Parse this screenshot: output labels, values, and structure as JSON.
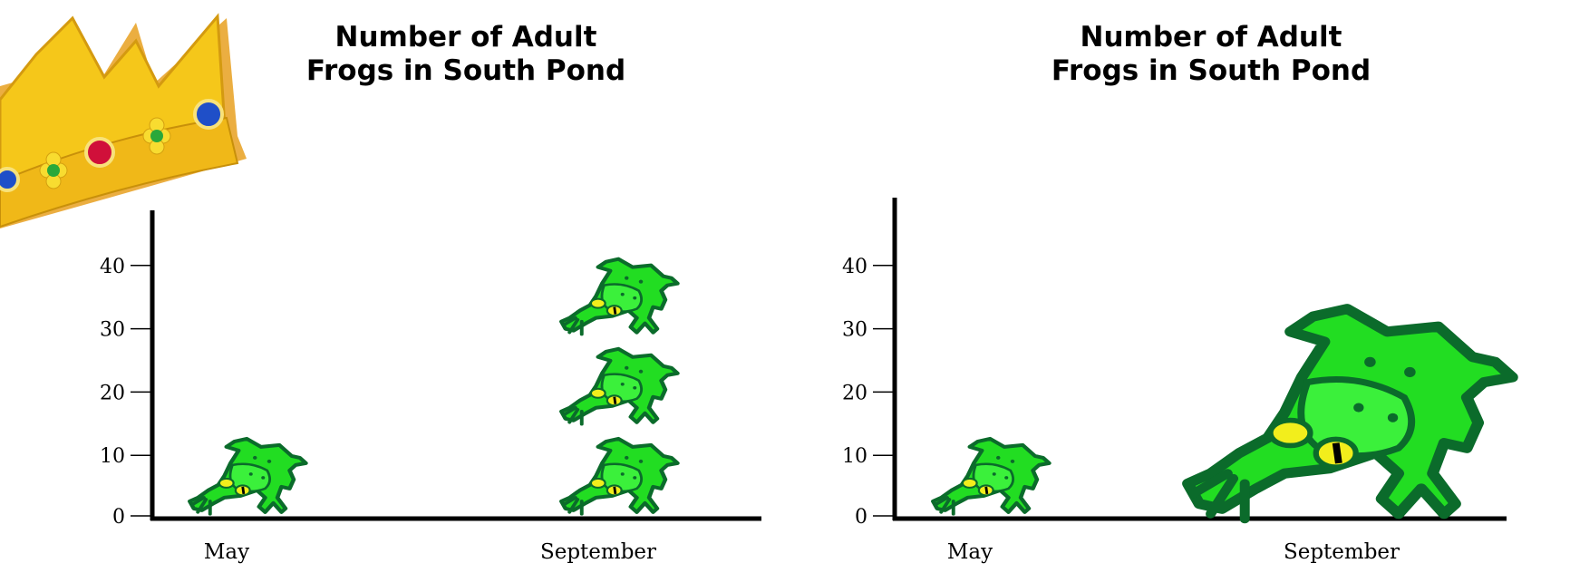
{
  "chart_data": [
    {
      "type": "pictograph",
      "title_lines": [
        "Number of Adult",
        "Frogs in South Pond"
      ],
      "categories": [
        "May",
        "September"
      ],
      "values": [
        10,
        30
      ],
      "icon_unit": 10,
      "ylim": [
        0,
        48
      ],
      "yticks": [
        0,
        10,
        20,
        30,
        40
      ],
      "icon": "frog-icon",
      "rendering": "stacked-icons"
    },
    {
      "type": "pictograph",
      "title_lines": [
        "Number of Adult",
        "Frogs in South Pond"
      ],
      "categories": [
        "May",
        "September"
      ],
      "values": [
        10,
        30
      ],
      "icon_unit": 10,
      "ylim": [
        0,
        48
      ],
      "yticks": [
        0,
        10,
        20,
        30,
        40
      ],
      "icon": "frog-icon",
      "rendering": "scaled-icon"
    }
  ],
  "colors": {
    "frog_body": "#22dd22",
    "frog_outline": "#0b6b2b",
    "frog_eye": "#f2ee1c",
    "crown": "#f5c71a"
  },
  "decorations": [
    "crown-icon"
  ]
}
